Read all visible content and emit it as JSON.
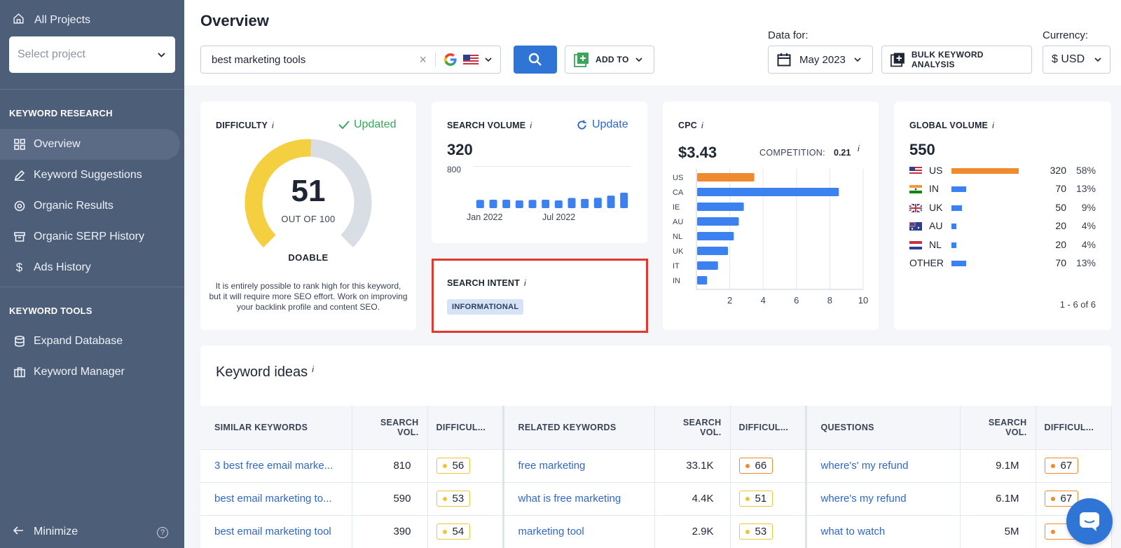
{
  "sidebar": {
    "all_projects": "All Projects",
    "select_project_placeholder": "Select project",
    "section_research": "KEYWORD RESEARCH",
    "research_items": [
      {
        "label": "Overview",
        "icon": "grid-icon"
      },
      {
        "label": "Keyword Suggestions",
        "icon": "pencil-icon"
      },
      {
        "label": "Organic Results",
        "icon": "target-icon"
      },
      {
        "label": "Organic SERP History",
        "icon": "archive-icon"
      },
      {
        "label": "Ads History",
        "icon": "dollar-icon"
      }
    ],
    "section_tools": "KEYWORD TOOLS",
    "tool_items": [
      {
        "label": "Expand Database",
        "icon": "database-icon"
      },
      {
        "label": "Keyword Manager",
        "icon": "briefcase-icon"
      }
    ],
    "minimize": "Minimize"
  },
  "header": {
    "title": "Overview",
    "search_value": "best marketing tools",
    "add_to": "ADD TO",
    "data_for_label": "Data for:",
    "date": "May 2023",
    "bulk": "BULK KEYWORD ANALYSIS",
    "currency_label": "Currency:",
    "currency": "$ USD"
  },
  "difficulty": {
    "title": "DIFFICULTY",
    "info": "i",
    "status": "Updated",
    "value": 51,
    "max": 100,
    "value_text": "51",
    "out_of": "OUT OF 100",
    "verdict": "DOABLE",
    "description": "It is entirely possible to rank high for this keyword, but it will require more SEO effort. Work on improving your backlink profile and content SEO.",
    "colors": {
      "fill": "#f4cf3f",
      "track": "#d9dde4"
    }
  },
  "search_volume": {
    "title": "SEARCH VOLUME",
    "info": "i",
    "update": "Update",
    "value": "320",
    "chart_data": {
      "type": "bar",
      "y_max_label": "800",
      "ylim": [
        0,
        800
      ],
      "x_tick_labels": [
        "Jan 2022",
        "Jul 2022"
      ],
      "values": [
        170,
        175,
        175,
        160,
        170,
        175,
        160,
        210,
        190,
        215,
        260,
        320
      ]
    }
  },
  "search_intent": {
    "title": "SEARCH INTENT",
    "info": "i",
    "badge": "INFORMATIONAL"
  },
  "cpc": {
    "title": "CPC",
    "info": "i",
    "value": "$3.43",
    "competition_label": "COMPETITION:",
    "competition_value": "0.21",
    "chart_data": {
      "type": "bar",
      "orientation": "horizontal",
      "categories": [
        "US",
        "CA",
        "IE",
        "AU",
        "NL",
        "UK",
        "IT",
        "IN"
      ],
      "values": [
        3.43,
        8.5,
        2.8,
        2.5,
        2.2,
        1.85,
        1.25,
        0.6
      ],
      "highlight_color": "#ef8a2e",
      "bar_color": "#3b82f0",
      "xlim": [
        0,
        10
      ],
      "x_ticks": [
        "2",
        "4",
        "6",
        "8",
        "10"
      ]
    }
  },
  "global_volume": {
    "title": "GLOBAL VOLUME",
    "info": "i",
    "value": "550",
    "rows": [
      {
        "country": "US",
        "flag": "us-flag-icon",
        "volume": "320",
        "pct": "58%",
        "share": 0.58,
        "color": "#ef8a2e"
      },
      {
        "country": "IN",
        "flag": "in-flag-icon",
        "volume": "70",
        "pct": "13%",
        "share": 0.13,
        "color": "#3b82f0"
      },
      {
        "country": "UK",
        "flag": "uk-flag-icon",
        "volume": "50",
        "pct": "9%",
        "share": 0.09,
        "color": "#3b82f0"
      },
      {
        "country": "AU",
        "flag": "au-flag-icon",
        "volume": "20",
        "pct": "4%",
        "share": 0.04,
        "color": "#3b82f0"
      },
      {
        "country": "NL",
        "flag": "nl-flag-icon",
        "volume": "20",
        "pct": "4%",
        "share": 0.04,
        "color": "#3b82f0"
      },
      {
        "country": "OTHER",
        "flag": "",
        "volume": "70",
        "pct": "13%",
        "share": 0.13,
        "color": "#3b82f0"
      }
    ],
    "pagination": "1 - 6 of 6"
  },
  "keyword_ideas": {
    "title": "Keyword ideas",
    "info": "i",
    "headers": {
      "similar": "SIMILAR KEYWORDS",
      "related": "RELATED KEYWORDS",
      "questions": "QUESTIONS",
      "vol": "SEARCH VOL.",
      "diff": "DIFFICUL..."
    },
    "rows": [
      {
        "s_kw": "3 best free email marke...",
        "s_vol": "810",
        "s_diff": "56",
        "s_color": "yellow",
        "r_kw": "free marketing",
        "r_vol": "33.1K",
        "r_diff": "66",
        "r_color": "orange",
        "q_kw": "where's' my refund",
        "q_vol": "9.1M",
        "q_diff": "67",
        "q_color": "orange"
      },
      {
        "s_kw": "best email marketing to...",
        "s_vol": "590",
        "s_diff": "53",
        "s_color": "yellow",
        "r_kw": "what is free marketing",
        "r_vol": "4.4K",
        "r_diff": "51",
        "r_color": "yellow",
        "q_kw": "where's my refund",
        "q_vol": "6.1M",
        "q_diff": "67",
        "q_color": "orange"
      },
      {
        "s_kw": "best email marketing tool",
        "s_vol": "390",
        "s_diff": "54",
        "s_color": "yellow",
        "r_kw": "marketing tool",
        "r_vol": "2.9K",
        "r_diff": "53",
        "r_color": "yellow",
        "q_kw": "what to watch",
        "q_vol": "5M",
        "q_diff": "",
        "q_color": "orange"
      }
    ]
  }
}
